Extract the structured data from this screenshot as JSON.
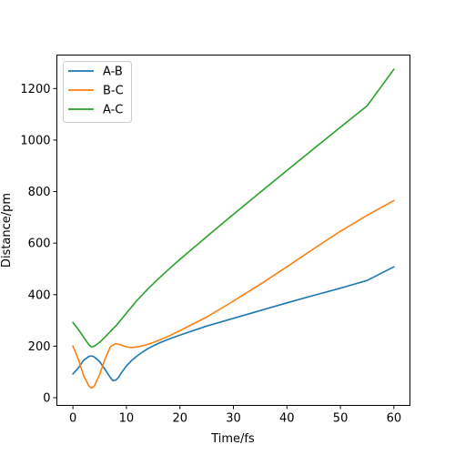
{
  "chart_data": {
    "type": "line",
    "title": "",
    "xlabel": "Time/fs",
    "ylabel": "Distance/pm",
    "xlim": [
      -3,
      63
    ],
    "ylim": [
      -30,
      1330
    ],
    "xticks": [
      0,
      10,
      20,
      30,
      40,
      50,
      60
    ],
    "yticks": [
      0,
      200,
      400,
      600,
      800,
      1000,
      1200
    ],
    "grid": false,
    "legend_position": "top-left",
    "series": [
      {
        "name": "A-B",
        "color": "#1f77b4",
        "points": [
          [
            0,
            92
          ],
          [
            1,
            115
          ],
          [
            2,
            145
          ],
          [
            3,
            160
          ],
          [
            3.5,
            162
          ],
          [
            4,
            158
          ],
          [
            5,
            140
          ],
          [
            6,
            110
          ],
          [
            7,
            78
          ],
          [
            7.5,
            66
          ],
          [
            8,
            68
          ],
          [
            8.5,
            78
          ],
          [
            9,
            95
          ],
          [
            10,
            123
          ],
          [
            11,
            145
          ],
          [
            12,
            162
          ],
          [
            13,
            177
          ],
          [
            14,
            190
          ],
          [
            15,
            201
          ],
          [
            16,
            211
          ],
          [
            18,
            228
          ],
          [
            20,
            243
          ],
          [
            25,
            278
          ],
          [
            30,
            308
          ],
          [
            35,
            338
          ],
          [
            40,
            368
          ],
          [
            45,
            397
          ],
          [
            50,
            425
          ],
          [
            55,
            455
          ],
          [
            60,
            508
          ]
        ]
      },
      {
        "name": "B-C",
        "color": "#ff7f0e",
        "points": [
          [
            0,
            200
          ],
          [
            1,
            150
          ],
          [
            2,
            85
          ],
          [
            3,
            45
          ],
          [
            3.5,
            37
          ],
          [
            4,
            45
          ],
          [
            5,
            90
          ],
          [
            6,
            150
          ],
          [
            7,
            198
          ],
          [
            8,
            210
          ],
          [
            9,
            205
          ],
          [
            10,
            197
          ],
          [
            11,
            195
          ],
          [
            12,
            197
          ],
          [
            13,
            201
          ],
          [
            14,
            207
          ],
          [
            15,
            214
          ],
          [
            16,
            222
          ],
          [
            18,
            240
          ],
          [
            20,
            260
          ],
          [
            25,
            313
          ],
          [
            30,
            375
          ],
          [
            35,
            440
          ],
          [
            40,
            508
          ],
          [
            45,
            578
          ],
          [
            50,
            646
          ],
          [
            55,
            708
          ],
          [
            60,
            765
          ]
        ]
      },
      {
        "name": "A-C",
        "color": "#2ca02c",
        "points": [
          [
            0,
            292
          ],
          [
            1,
            265
          ],
          [
            2,
            235
          ],
          [
            3,
            205
          ],
          [
            3.5,
            197
          ],
          [
            4,
            200
          ],
          [
            5,
            215
          ],
          [
            6,
            235
          ],
          [
            7,
            257
          ],
          [
            8,
            278
          ],
          [
            10,
            328
          ],
          [
            12,
            378
          ],
          [
            14,
            422
          ],
          [
            16,
            462
          ],
          [
            18,
            500
          ],
          [
            20,
            537
          ],
          [
            25,
            625
          ],
          [
            30,
            712
          ],
          [
            35,
            797
          ],
          [
            40,
            882
          ],
          [
            45,
            966
          ],
          [
            50,
            1050
          ],
          [
            55,
            1133
          ],
          [
            60,
            1275
          ]
        ]
      }
    ]
  }
}
